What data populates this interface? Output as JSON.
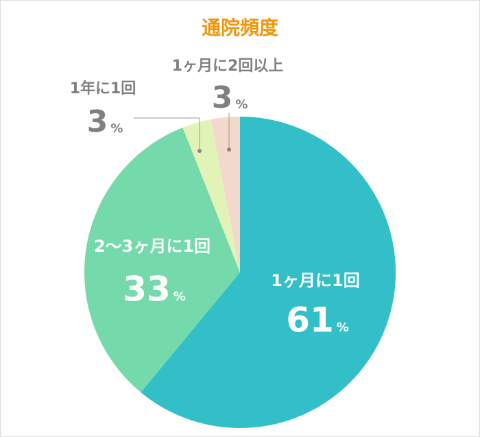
{
  "chart_data": {
    "type": "pie",
    "title": "通院頻度",
    "unit": "%",
    "categories": [
      "1ヶ月に1回",
      "2〜3ヶ月に1回",
      "1年に1回",
      "1ヶ月に2回以上"
    ],
    "values": [
      61,
      33,
      3,
      3
    ],
    "colors": [
      "#33bfc8",
      "#74d9ab",
      "#e2f3b8",
      "#f3d9cb"
    ]
  }
}
